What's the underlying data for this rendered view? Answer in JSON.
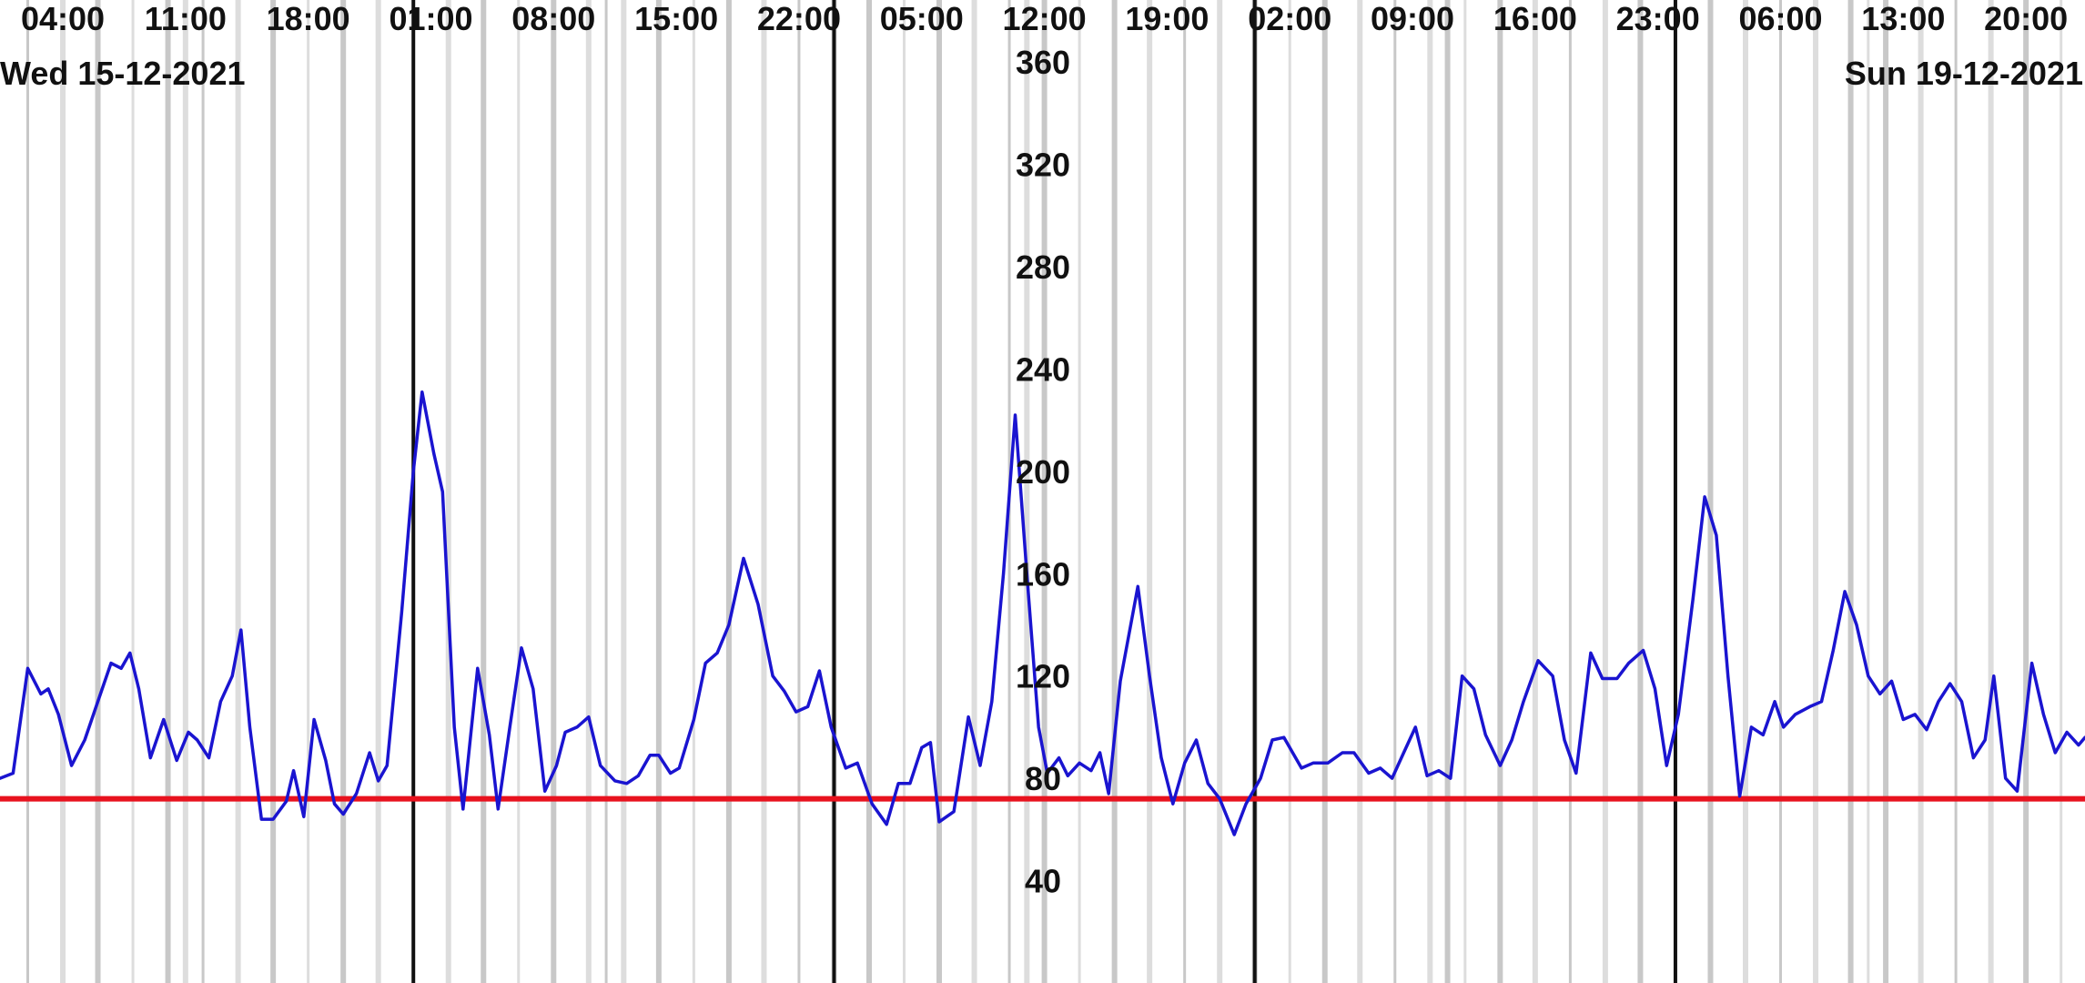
{
  "chart_data": {
    "type": "line",
    "title": "",
    "xlabel": "",
    "ylabel": "",
    "x_tick_labels": [
      "04:00",
      "11:00",
      "18:00",
      "01:00",
      "08:00",
      "15:00",
      "22:00",
      "05:00",
      "12:00",
      "19:00",
      "02:00",
      "09:00",
      "16:00",
      "23:00",
      "06:00",
      "13:00",
      "20:00"
    ],
    "y_ticks": [
      40,
      80,
      120,
      160,
      200,
      240,
      280,
      320,
      360
    ],
    "ylim": [
      0,
      370
    ],
    "x_range": [
      "2021-12-15T00:25",
      "2021-12-19T23:22"
    ],
    "date_labels": [
      "Wed 15-12-2021",
      "Sun 19-12-2021"
    ],
    "day_boundaries": [
      "2021-12-16T00:00",
      "2021-12-17T00:00",
      "2021-12-18T00:00",
      "2021-12-19T00:00"
    ],
    "reference_line": {
      "value": 72,
      "color": "#e8121e"
    },
    "grid": "vertical hourly lines",
    "series": [
      {
        "color": "#1a14d0",
        "points": [
          [
            "2021-12-15T00:25",
            80
          ],
          [
            "2021-12-15T01:10",
            82
          ],
          [
            "2021-12-15T02:00",
            123
          ],
          [
            "2021-12-15T02:45",
            113
          ],
          [
            "2021-12-15T03:10",
            115
          ],
          [
            "2021-12-15T03:45",
            105
          ],
          [
            "2021-12-15T04:30",
            85
          ],
          [
            "2021-12-15T05:15",
            95
          ],
          [
            "2021-12-15T06:00",
            110
          ],
          [
            "2021-12-15T06:45",
            125
          ],
          [
            "2021-12-15T07:20",
            123
          ],
          [
            "2021-12-15T07:50",
            129
          ],
          [
            "2021-12-15T08:20",
            115
          ],
          [
            "2021-12-15T09:00",
            88
          ],
          [
            "2021-12-15T09:45",
            103
          ],
          [
            "2021-12-15T10:30",
            87
          ],
          [
            "2021-12-15T11:10",
            98
          ],
          [
            "2021-12-15T11:40",
            95
          ],
          [
            "2021-12-15T12:20",
            88
          ],
          [
            "2021-12-15T13:00",
            110
          ],
          [
            "2021-12-15T13:40",
            120
          ],
          [
            "2021-12-15T14:10",
            138
          ],
          [
            "2021-12-15T14:40",
            100
          ],
          [
            "2021-12-15T15:20",
            64
          ],
          [
            "2021-12-15T16:00",
            64
          ],
          [
            "2021-12-15T16:45",
            71
          ],
          [
            "2021-12-15T17:10",
            83
          ],
          [
            "2021-12-15T17:45",
            65
          ],
          [
            "2021-12-15T18:20",
            103
          ],
          [
            "2021-12-15T19:00",
            87
          ],
          [
            "2021-12-15T19:30",
            70
          ],
          [
            "2021-12-15T20:00",
            66
          ],
          [
            "2021-12-15T20:45",
            74
          ],
          [
            "2021-12-15T21:30",
            90
          ],
          [
            "2021-12-15T22:00",
            79
          ],
          [
            "2021-12-15T22:30",
            85
          ],
          [
            "2021-12-15T23:20",
            145
          ],
          [
            "2021-12-16T00:00",
            200
          ],
          [
            "2021-12-16T00:30",
            231
          ],
          [
            "2021-12-16T01:10",
            207
          ],
          [
            "2021-12-16T01:40",
            192
          ],
          [
            "2021-12-16T02:20",
            100
          ],
          [
            "2021-12-16T02:50",
            68
          ],
          [
            "2021-12-16T03:40",
            123
          ],
          [
            "2021-12-16T04:20",
            97
          ],
          [
            "2021-12-16T04:50",
            68
          ],
          [
            "2021-12-16T05:30",
            100
          ],
          [
            "2021-12-16T06:10",
            131
          ],
          [
            "2021-12-16T06:50",
            115
          ],
          [
            "2021-12-16T07:30",
            75
          ],
          [
            "2021-12-16T08:10",
            85
          ],
          [
            "2021-12-16T08:40",
            98
          ],
          [
            "2021-12-16T09:20",
            100
          ],
          [
            "2021-12-16T10:00",
            104
          ],
          [
            "2021-12-16T10:40",
            85
          ],
          [
            "2021-12-16T11:30",
            79
          ],
          [
            "2021-12-16T12:10",
            78
          ],
          [
            "2021-12-16T12:50",
            81
          ],
          [
            "2021-12-16T13:30",
            89
          ],
          [
            "2021-12-16T14:00",
            89
          ],
          [
            "2021-12-16T14:40",
            82
          ],
          [
            "2021-12-16T15:10",
            84
          ],
          [
            "2021-12-16T16:00",
            103
          ],
          [
            "2021-12-16T16:40",
            125
          ],
          [
            "2021-12-16T17:20",
            129
          ],
          [
            "2021-12-16T18:00",
            140
          ],
          [
            "2021-12-16T18:50",
            166
          ],
          [
            "2021-12-16T19:40",
            148
          ],
          [
            "2021-12-16T20:30",
            120
          ],
          [
            "2021-12-16T21:10",
            114
          ],
          [
            "2021-12-16T21:50",
            106
          ],
          [
            "2021-12-16T22:30",
            108
          ],
          [
            "2021-12-16T23:10",
            122
          ],
          [
            "2021-12-16T23:50",
            100
          ],
          [
            "2021-12-17T00:40",
            84
          ],
          [
            "2021-12-17T01:20",
            86
          ],
          [
            "2021-12-17T02:10",
            70
          ],
          [
            "2021-12-17T03:00",
            62
          ],
          [
            "2021-12-17T03:40",
            78
          ],
          [
            "2021-12-17T04:20",
            78
          ],
          [
            "2021-12-17T05:00",
            92
          ],
          [
            "2021-12-17T05:30",
            94
          ],
          [
            "2021-12-17T06:00",
            63
          ],
          [
            "2021-12-17T06:50",
            67
          ],
          [
            "2021-12-17T07:40",
            104
          ],
          [
            "2021-12-17T08:20",
            85
          ],
          [
            "2021-12-17T09:00",
            110
          ],
          [
            "2021-12-17T09:40",
            160
          ],
          [
            "2021-12-17T10:20",
            222
          ],
          [
            "2021-12-17T11:00",
            160
          ],
          [
            "2021-12-17T11:40",
            100
          ],
          [
            "2021-12-17T12:10",
            82
          ],
          [
            "2021-12-17T12:50",
            88
          ],
          [
            "2021-12-17T13:20",
            81
          ],
          [
            "2021-12-17T14:00",
            86
          ],
          [
            "2021-12-17T14:40",
            83
          ],
          [
            "2021-12-17T15:10",
            90
          ],
          [
            "2021-12-17T15:40",
            74
          ],
          [
            "2021-12-17T16:20",
            118
          ],
          [
            "2021-12-17T17:20",
            155
          ],
          [
            "2021-12-17T18:00",
            120
          ],
          [
            "2021-12-17T18:40",
            88
          ],
          [
            "2021-12-17T19:20",
            70
          ],
          [
            "2021-12-17T20:00",
            86
          ],
          [
            "2021-12-17T20:40",
            95
          ],
          [
            "2021-12-17T21:20",
            78
          ],
          [
            "2021-12-17T22:00",
            72
          ],
          [
            "2021-12-17T22:50",
            58
          ],
          [
            "2021-12-17T23:30",
            70
          ],
          [
            "2021-12-18T00:20",
            80
          ],
          [
            "2021-12-18T01:00",
            95
          ],
          [
            "2021-12-18T01:40",
            96
          ],
          [
            "2021-12-18T02:40",
            84
          ],
          [
            "2021-12-18T03:20",
            86
          ],
          [
            "2021-12-18T04:10",
            86
          ],
          [
            "2021-12-18T05:00",
            90
          ],
          [
            "2021-12-18T05:40",
            90
          ],
          [
            "2021-12-18T06:30",
            82
          ],
          [
            "2021-12-18T07:10",
            84
          ],
          [
            "2021-12-18T07:50",
            80
          ],
          [
            "2021-12-18T08:30",
            90
          ],
          [
            "2021-12-18T09:10",
            100
          ],
          [
            "2021-12-18T09:50",
            81
          ],
          [
            "2021-12-18T10:30",
            83
          ],
          [
            "2021-12-18T11:10",
            80
          ],
          [
            "2021-12-18T11:50",
            120
          ],
          [
            "2021-12-18T12:30",
            115
          ],
          [
            "2021-12-18T13:10",
            97
          ],
          [
            "2021-12-18T14:00",
            85
          ],
          [
            "2021-12-18T14:40",
            95
          ],
          [
            "2021-12-18T15:20",
            110
          ],
          [
            "2021-12-18T16:10",
            126
          ],
          [
            "2021-12-18T17:00",
            120
          ],
          [
            "2021-12-18T17:40",
            95
          ],
          [
            "2021-12-18T18:20",
            82
          ],
          [
            "2021-12-18T19:10",
            129
          ],
          [
            "2021-12-18T19:50",
            119
          ],
          [
            "2021-12-18T20:40",
            119
          ],
          [
            "2021-12-18T21:20",
            125
          ],
          [
            "2021-12-18T22:10",
            130
          ],
          [
            "2021-12-18T22:50",
            115
          ],
          [
            "2021-12-18T23:30",
            85
          ],
          [
            "2021-12-19T00:10",
            105
          ],
          [
            "2021-12-19T01:00",
            150
          ],
          [
            "2021-12-19T01:40",
            190
          ],
          [
            "2021-12-19T02:20",
            175
          ],
          [
            "2021-12-19T03:00",
            120
          ],
          [
            "2021-12-19T03:40",
            73
          ],
          [
            "2021-12-19T04:20",
            100
          ],
          [
            "2021-12-19T05:00",
            97
          ],
          [
            "2021-12-19T05:40",
            110
          ],
          [
            "2021-12-19T06:10",
            100
          ],
          [
            "2021-12-19T06:50",
            105
          ],
          [
            "2021-12-19T07:40",
            108
          ],
          [
            "2021-12-19T08:20",
            110
          ],
          [
            "2021-12-19T09:00",
            130
          ],
          [
            "2021-12-19T09:40",
            153
          ],
          [
            "2021-12-19T10:20",
            140
          ],
          [
            "2021-12-19T11:00",
            120
          ],
          [
            "2021-12-19T11:40",
            113
          ],
          [
            "2021-12-19T12:20",
            118
          ],
          [
            "2021-12-19T13:00",
            103
          ],
          [
            "2021-12-19T13:40",
            105
          ],
          [
            "2021-12-19T14:20",
            99
          ],
          [
            "2021-12-19T15:00",
            110
          ],
          [
            "2021-12-19T15:40",
            117
          ],
          [
            "2021-12-19T16:20",
            110
          ],
          [
            "2021-12-19T17:00",
            88
          ],
          [
            "2021-12-19T17:40",
            95
          ],
          [
            "2021-12-19T18:10",
            120
          ],
          [
            "2021-12-19T18:50",
            80
          ],
          [
            "2021-12-19T19:30",
            75
          ],
          [
            "2021-12-19T20:20",
            125
          ],
          [
            "2021-12-19T21:00",
            105
          ],
          [
            "2021-12-19T21:40",
            90
          ],
          [
            "2021-12-19T22:20",
            98
          ],
          [
            "2021-12-19T23:00",
            93
          ],
          [
            "2021-12-19T23:22",
            96
          ]
        ]
      }
    ]
  }
}
